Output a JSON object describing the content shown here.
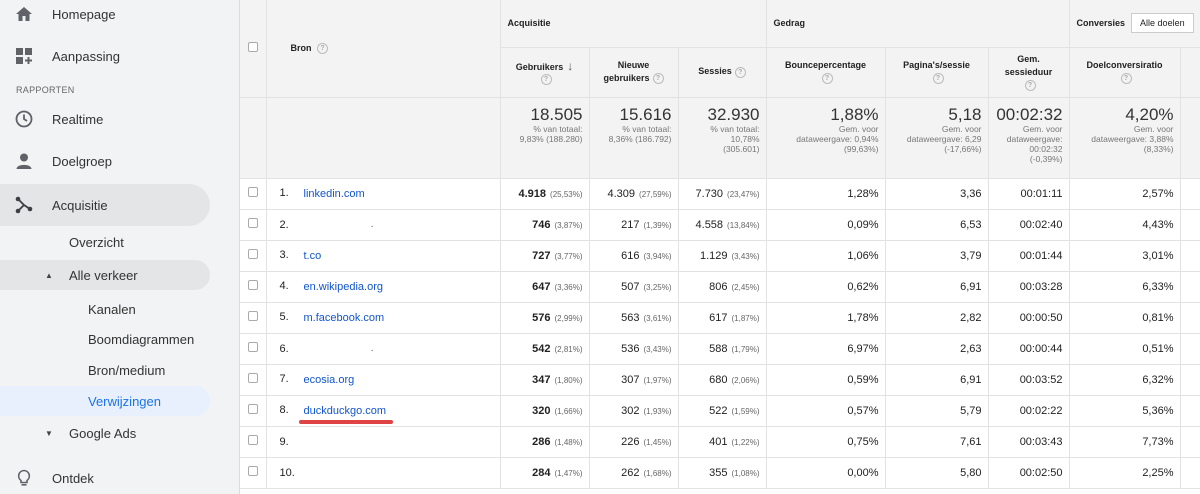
{
  "sidebar": {
    "top": [
      {
        "label": "Homepage",
        "icon": "home-icon"
      },
      {
        "label": "Aanpassing",
        "icon": "dashboard-grid-icon"
      }
    ],
    "section_label": "RAPPORTEN",
    "reports": [
      {
        "label": "Realtime",
        "icon": "clock-icon"
      },
      {
        "label": "Doelgroep",
        "icon": "person-icon"
      },
      {
        "label": "Acquisitie",
        "icon": "acquisition-icon"
      }
    ],
    "acquisition_items": {
      "overzicht": "Overzicht",
      "alle_verkeer": "Alle verkeer",
      "kanalen": "Kanalen",
      "boomdiagrammen": "Boomdiagrammen",
      "bron_medium": "Bron/medium",
      "verwijzingen": "Verwijzingen",
      "google_ads": "Google Ads"
    },
    "ontdek": "Ontdek"
  },
  "table": {
    "source_header": "Bron",
    "groups": {
      "acquisitie": "Acquisitie",
      "gedrag": "Gedrag",
      "conversies": "Conversies",
      "conversies_select": "Alle doelen"
    },
    "columns": {
      "gebruikers": "Gebruikers",
      "nieuwe_1": "Nieuwe",
      "nieuwe_2": "gebruikers",
      "sessies": "Sessies",
      "bounce": "Bouncepercentage",
      "paginas": "Pagina's/sessie",
      "duur_1": "Gem.",
      "duur_2": "sessieduur",
      "doelconv": "Doelconversiratio"
    },
    "totals": {
      "gebruikers": {
        "value": "18.505",
        "l1": "% van totaal:",
        "l2": "9,83% (188.280)"
      },
      "nieuwe": {
        "value": "15.616",
        "l1": "% van totaal:",
        "l2": "8,36% (186.792)"
      },
      "sessies": {
        "value": "32.930",
        "l1": "% van totaal:",
        "l2": "10,78%",
        "l3": "(305.601)"
      },
      "bounce": {
        "value": "1,88%",
        "l1": "Gem. voor",
        "l2": "dataweergave: 0,94%",
        "l3": "(99,63%)"
      },
      "paginas": {
        "value": "5,18",
        "l1": "Gem. voor",
        "l2": "dataweergave: 6,29",
        "l3": "(-17,66%)"
      },
      "duur": {
        "value": "00:02:32",
        "l1": "Gem. voor",
        "l2": "dataweergave:",
        "l3": "00:02:32",
        "l4": "(-0,39%)"
      },
      "doelconv": {
        "value": "4,20%",
        "l1": "Gem. voor",
        "l2": "dataweergave: 3,88%",
        "l3": "(8,33%)"
      }
    },
    "rows": [
      {
        "num": "1.",
        "source": "linkedin.com",
        "users": "4.918",
        "users_pct": "(25,53%)",
        "new": "4.309",
        "new_pct": "(27,59%)",
        "sessions": "7.730",
        "sessions_pct": "(23,47%)",
        "bounce": "1,28%",
        "pages": "3,36",
        "duration": "00:01:11",
        "conv": "2,57%"
      },
      {
        "num": "2.",
        "source": "",
        "users": "746",
        "users_pct": "(3,87%)",
        "new": "217",
        "new_pct": "(1,39%)",
        "sessions": "4.558",
        "sessions_pct": "(13,84%)",
        "bounce": "0,09%",
        "pages": "6,53",
        "duration": "00:02:40",
        "conv": "4,43%"
      },
      {
        "num": "3.",
        "source": "t.co",
        "users": "727",
        "users_pct": "(3,77%)",
        "new": "616",
        "new_pct": "(3,94%)",
        "sessions": "1.129",
        "sessions_pct": "(3,43%)",
        "bounce": "1,06%",
        "pages": "3,79",
        "duration": "00:01:44",
        "conv": "3,01%"
      },
      {
        "num": "4.",
        "source": "en.wikipedia.org",
        "users": "647",
        "users_pct": "(3,36%)",
        "new": "507",
        "new_pct": "(3,25%)",
        "sessions": "806",
        "sessions_pct": "(2,45%)",
        "bounce": "0,62%",
        "pages": "6,91",
        "duration": "00:03:28",
        "conv": "6,33%"
      },
      {
        "num": "5.",
        "source": "m.facebook.com",
        "users": "576",
        "users_pct": "(2,99%)",
        "new": "563",
        "new_pct": "(3,61%)",
        "sessions": "617",
        "sessions_pct": "(1,87%)",
        "bounce": "1,78%",
        "pages": "2,82",
        "duration": "00:00:50",
        "conv": "0,81%"
      },
      {
        "num": "6.",
        "source": "",
        "users": "542",
        "users_pct": "(2,81%)",
        "new": "536",
        "new_pct": "(3,43%)",
        "sessions": "588",
        "sessions_pct": "(1,79%)",
        "bounce": "6,97%",
        "pages": "2,63",
        "duration": "00:00:44",
        "conv": "0,51%"
      },
      {
        "num": "7.",
        "source": "ecosia.org",
        "users": "347",
        "users_pct": "(1,80%)",
        "new": "307",
        "new_pct": "(1,97%)",
        "sessions": "680",
        "sessions_pct": "(2,06%)",
        "bounce": "0,59%",
        "pages": "6,91",
        "duration": "00:03:52",
        "conv": "6,32%"
      },
      {
        "num": "8.",
        "source": "duckduckgo.com",
        "users": "320",
        "users_pct": "(1,66%)",
        "new": "302",
        "new_pct": "(1,93%)",
        "sessions": "522",
        "sessions_pct": "(1,59%)",
        "bounce": "0,57%",
        "pages": "5,79",
        "duration": "00:02:22",
        "conv": "5,36%"
      },
      {
        "num": "9.",
        "source": "",
        "users": "286",
        "users_pct": "(1,48%)",
        "new": "226",
        "new_pct": "(1,45%)",
        "sessions": "401",
        "sessions_pct": "(1,22%)",
        "bounce": "0,75%",
        "pages": "7,61",
        "duration": "00:03:43",
        "conv": "7,73%"
      },
      {
        "num": "10.",
        "source": "",
        "users": "284",
        "users_pct": "(1,47%)",
        "new": "262",
        "new_pct": "(1,68%)",
        "sessions": "355",
        "sessions_pct": "(1,08%)",
        "bounce": "0,00%",
        "pages": "5,80",
        "duration": "00:02:50",
        "conv": "2,25%"
      }
    ]
  },
  "colors": {
    "link": "#1155cc",
    "highlight_underline": "#e04343",
    "selected_nav": "#1a73e8"
  }
}
